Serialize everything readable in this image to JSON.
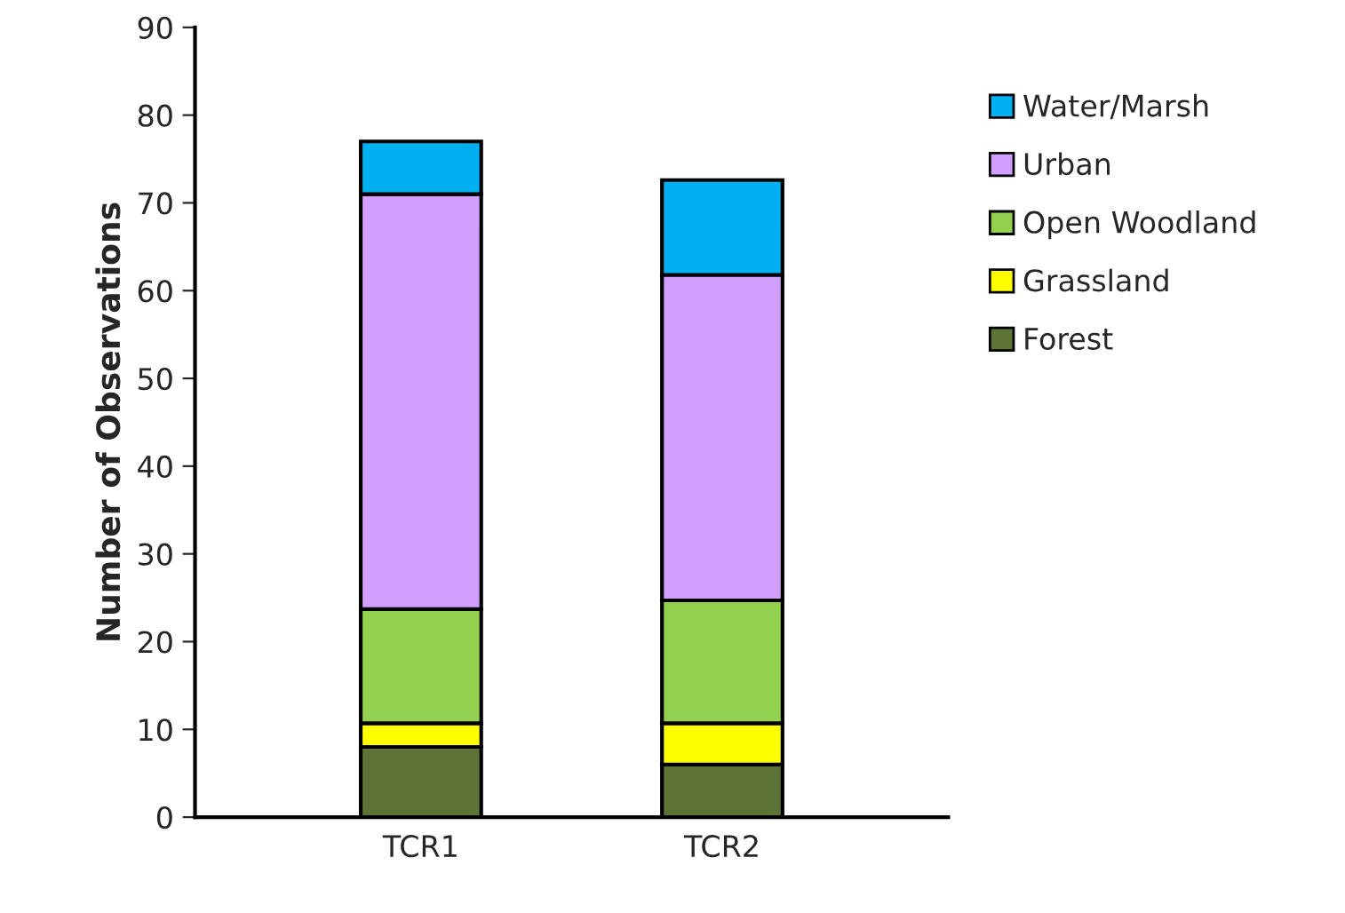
{
  "chart_data": {
    "type": "bar",
    "stacked": true,
    "ylabel": "Number of Observations",
    "categories": [
      "TCR1",
      "TCR2"
    ],
    "series": [
      {
        "name": "Forest",
        "color": "#5e7436",
        "values": [
          8,
          6
        ]
      },
      {
        "name": "Grassland",
        "color": "#ffff00",
        "values": [
          2.7,
          4.7
        ]
      },
      {
        "name": "Open Woodland",
        "color": "#92d050",
        "values": [
          13,
          14
        ]
      },
      {
        "name": "Urban",
        "color": "#d29fff",
        "values": [
          47.3,
          37.1
        ]
      },
      {
        "name": "Water/Marsh",
        "color": "#00b0f0",
        "values": [
          6,
          10.8
        ]
      }
    ],
    "ylim": [
      0,
      90
    ],
    "yticks": [
      0,
      10,
      20,
      30,
      40,
      50,
      60,
      70,
      80,
      90
    ],
    "grid": false,
    "legend": "right"
  }
}
